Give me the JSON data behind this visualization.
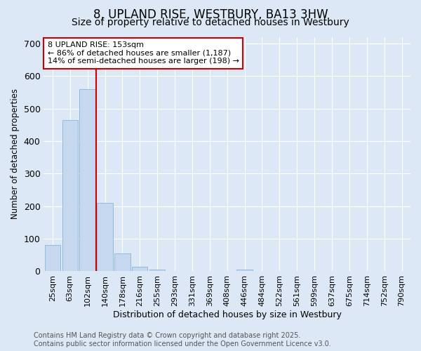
{
  "title": "8, UPLAND RISE, WESTBURY, BA13 3HW",
  "subtitle": "Size of property relative to detached houses in Westbury",
  "xlabel": "Distribution of detached houses by size in Westbury",
  "ylabel": "Number of detached properties",
  "categories": [
    "25sqm",
    "63sqm",
    "102sqm",
    "140sqm",
    "178sqm",
    "216sqm",
    "255sqm",
    "293sqm",
    "331sqm",
    "369sqm",
    "408sqm",
    "446sqm",
    "484sqm",
    "522sqm",
    "561sqm",
    "599sqm",
    "637sqm",
    "675sqm",
    "714sqm",
    "752sqm",
    "790sqm"
  ],
  "values": [
    80,
    465,
    560,
    210,
    55,
    15,
    5,
    0,
    0,
    0,
    0,
    5,
    0,
    0,
    0,
    0,
    0,
    0,
    0,
    0,
    0
  ],
  "bar_color": "#c5d8f0",
  "bar_edgecolor": "#8ab4d8",
  "vline_x": 2.5,
  "vline_color": "#cc0000",
  "annotation_text": "8 UPLAND RISE: 153sqm\n← 86% of detached houses are smaller (1,187)\n14% of semi-detached houses are larger (198) →",
  "annotation_box_facecolor": "#ffffff",
  "annotation_box_edgecolor": "#cc0000",
  "ylim": [
    0,
    720
  ],
  "yticks": [
    0,
    100,
    200,
    300,
    400,
    500,
    600,
    700
  ],
  "background_color": "#dce8f5",
  "grid_color": "#ffffff",
  "footer_text": "Contains HM Land Registry data © Crown copyright and database right 2025.\nContains public sector information licensed under the Open Government Licence v3.0.",
  "title_fontsize": 12,
  "subtitle_fontsize": 10,
  "xlabel_fontsize": 9,
  "ylabel_fontsize": 8.5,
  "ytick_fontsize": 9,
  "xtick_fontsize": 8,
  "annotation_fontsize": 8,
  "footer_fontsize": 7
}
